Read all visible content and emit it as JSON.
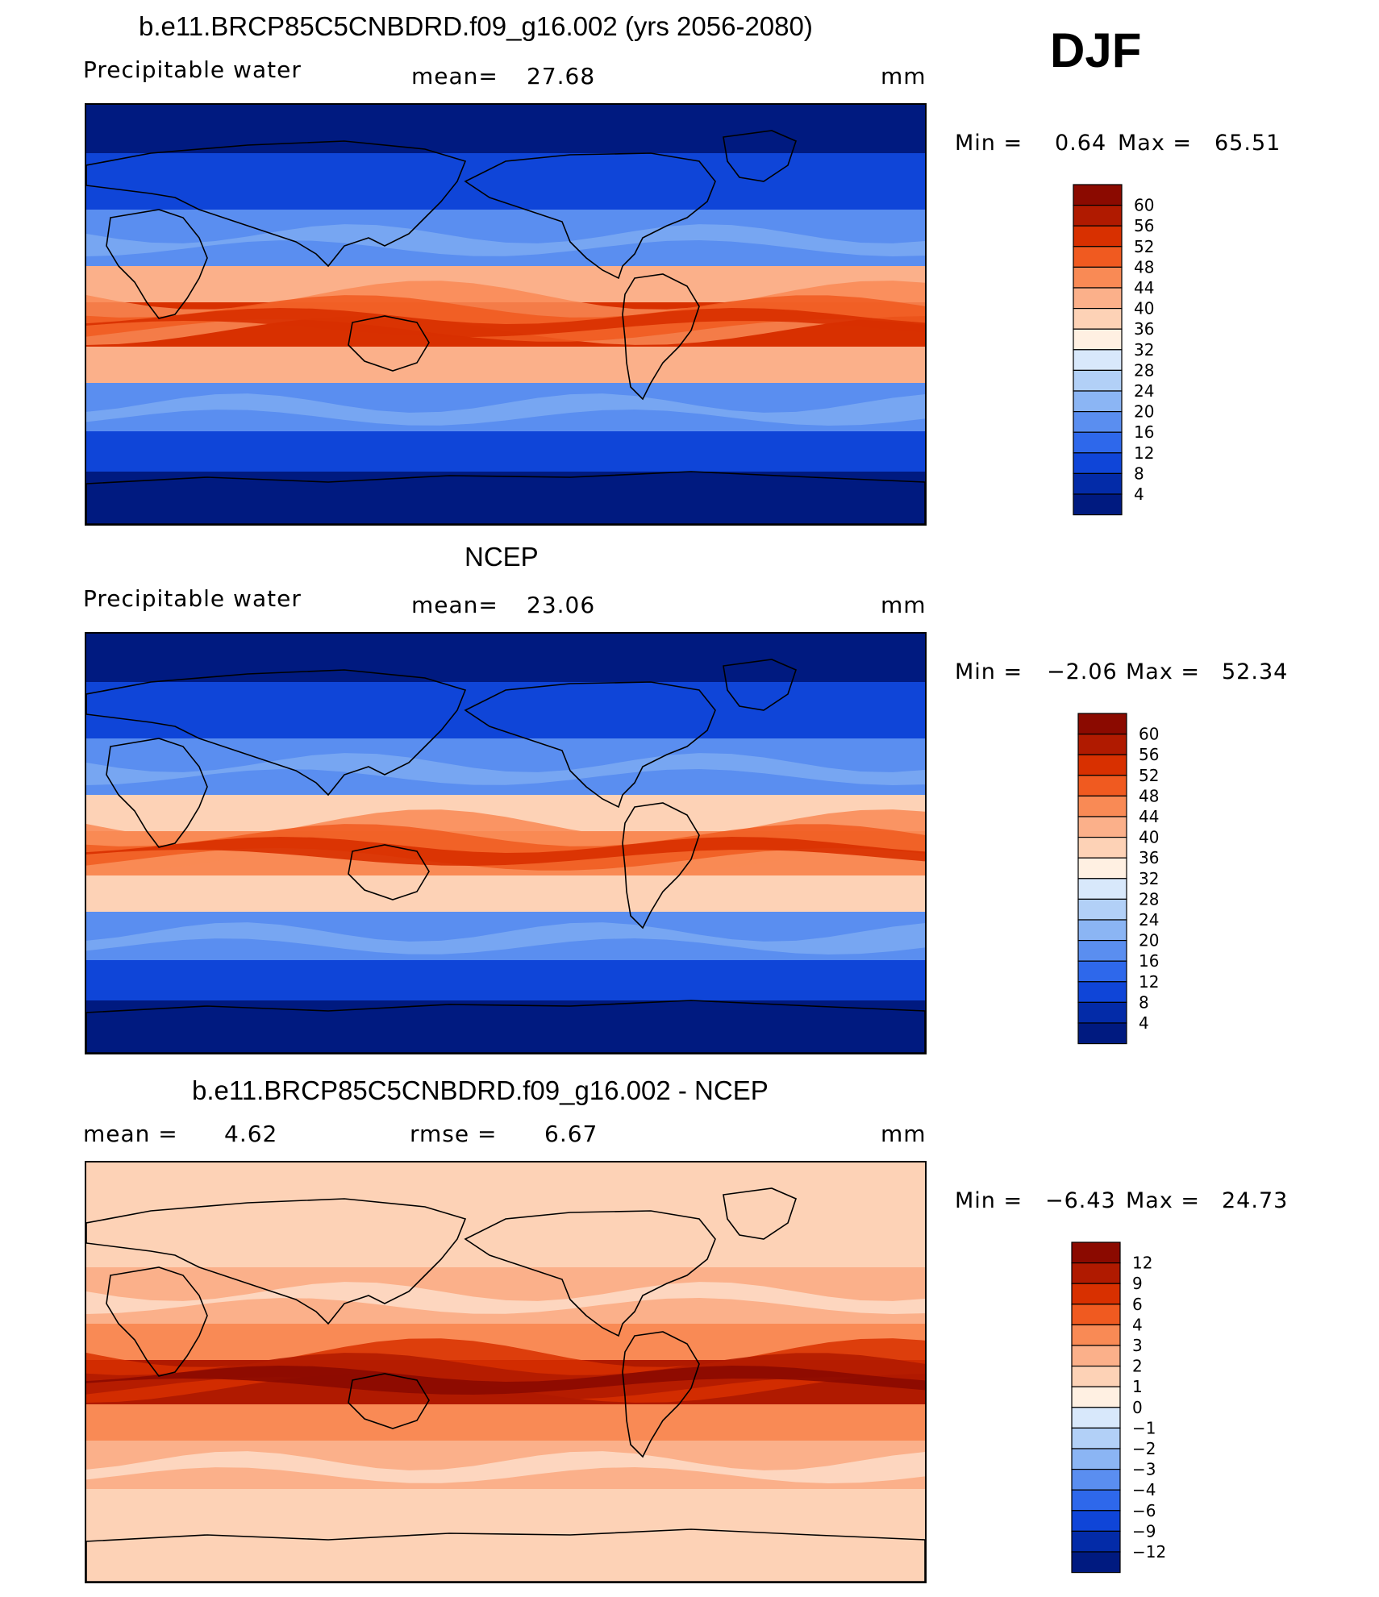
{
  "season": "DJF",
  "units": "mm",
  "panels": [
    {
      "id": "model",
      "title": "b.e11.BRCP85C5CNBDRD.f09_g16.002 (yrs 2056-2080)",
      "variable": "Precipitable  water",
      "stat1_label": "mean=",
      "stat1_value": "27.68",
      "units": "mm",
      "min_label": "Min  =",
      "min_value": "0.64",
      "max_label": "Max  =",
      "max_value": "65.51",
      "colorbar_levels": [
        "60",
        "56",
        "52",
        "48",
        "44",
        "40",
        "36",
        "32",
        "28",
        "24",
        "20",
        "16",
        "12",
        "8",
        "4"
      ],
      "colorbar_colors": [
        "#8b0a00",
        "#b01a00",
        "#d83000",
        "#f05a20",
        "#f98a55",
        "#fbb08a",
        "#fdd2b6",
        "#fff0e2",
        "#d8e8fb",
        "#b2d0f7",
        "#8bb5f4",
        "#5a8ef0",
        "#2e68eb",
        "#0f45d8",
        "#032ba8",
        "#001a80"
      ],
      "map_fields": {
        "tropics": "#d83000",
        "subtropics": "#fbb08a",
        "midlat": "#5a8ef0",
        "highlat": "#0f45d8",
        "polar": "#001a80"
      }
    },
    {
      "id": "obs",
      "title": "NCEP",
      "variable": "Precipitable  water",
      "stat1_label": "mean=",
      "stat1_value": "23.06",
      "units": "mm",
      "min_label": "Min  =",
      "min_value": "−2.06",
      "max_label": "Max  =",
      "max_value": "52.34",
      "colorbar_levels": [
        "60",
        "56",
        "52",
        "48",
        "44",
        "40",
        "36",
        "32",
        "28",
        "24",
        "20",
        "16",
        "12",
        "8",
        "4"
      ],
      "colorbar_colors": [
        "#8b0a00",
        "#b01a00",
        "#d83000",
        "#f05a20",
        "#f98a55",
        "#fbb08a",
        "#fdd2b6",
        "#fff0e2",
        "#d8e8fb",
        "#b2d0f7",
        "#8bb5f4",
        "#5a8ef0",
        "#2e68eb",
        "#0f45d8",
        "#032ba8",
        "#001a80"
      ],
      "map_fields": {
        "tropics": "#f98a55",
        "subtropics": "#fdd2b6",
        "midlat": "#5a8ef0",
        "highlat": "#0f45d8",
        "polar": "#001a80"
      }
    },
    {
      "id": "diff",
      "title": "b.e11.BRCP85C5CNBDRD.f09_g16.002 - NCEP",
      "stat1_label": "mean =",
      "stat1_value": "4.62",
      "stat2_label": "rmse =",
      "stat2_value": "6.67",
      "units": "mm",
      "min_label": "Min  =",
      "min_value": "−6.43",
      "max_label": "Max  =",
      "max_value": "24.73",
      "colorbar_levels": [
        "12",
        "9",
        "6",
        "4",
        "3",
        "2",
        "1",
        "0",
        "−1",
        "−2",
        "−3",
        "−4",
        "−6",
        "−9",
        "−12"
      ],
      "colorbar_colors": [
        "#8b0a00",
        "#b01a00",
        "#d83000",
        "#f05a20",
        "#f98a55",
        "#fbb08a",
        "#fdd2b6",
        "#fff0e2",
        "#d8e8fb",
        "#b2d0f7",
        "#8bb5f4",
        "#5a8ef0",
        "#2e68eb",
        "#0f45d8",
        "#032ba8",
        "#001a80"
      ],
      "map_fields": {
        "tropics": "#b01a00",
        "subtropics": "#f98a55",
        "midlat": "#fbb08a",
        "highlat": "#fdd2b6",
        "polar": "#fdd2b6"
      }
    }
  ]
}
